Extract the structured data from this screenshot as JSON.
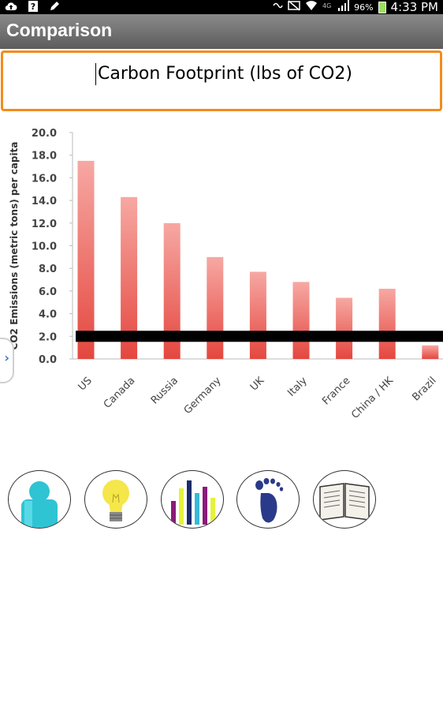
{
  "status_bar": {
    "left_icons": [
      "cloud-upload-icon",
      "help-icon",
      "edit-icon"
    ],
    "right_icons": [
      "nfc-icon",
      "mute-icon",
      "wifi-icon",
      "4g-icon",
      "signal-icon"
    ],
    "battery": "96%",
    "time": "4:33 PM"
  },
  "header": {
    "title": "Comparison"
  },
  "input": {
    "value": "Carbon Footprint (lbs of CO2)"
  },
  "chart_data": {
    "type": "bar",
    "title": "",
    "ylabel": "CO2 Emissions (metric tons) per capita",
    "xlabel": "",
    "ylim": [
      0,
      20
    ],
    "yticks": [
      "0.0",
      "2.0",
      "4.0",
      "6.0",
      "8.0",
      "10.0",
      "12.0",
      "14.0",
      "16.0",
      "18.0",
      "20.0"
    ],
    "categories": [
      "US",
      "Canada",
      "Russia",
      "Germany",
      "UK",
      "Italy",
      "France",
      "China / HK",
      "Brazil"
    ],
    "values": [
      17.5,
      14.3,
      12.0,
      9.0,
      7.7,
      6.8,
      5.4,
      6.2,
      1.2
    ],
    "reference_line": 2.0,
    "bar_color": "#e64b45",
    "line_color": "#000000",
    "grid": false
  },
  "icons": [
    {
      "name": "person-icon"
    },
    {
      "name": "lightbulb-icon"
    },
    {
      "name": "bar-chart-icon"
    },
    {
      "name": "footprint-icon"
    },
    {
      "name": "book-icon"
    }
  ]
}
